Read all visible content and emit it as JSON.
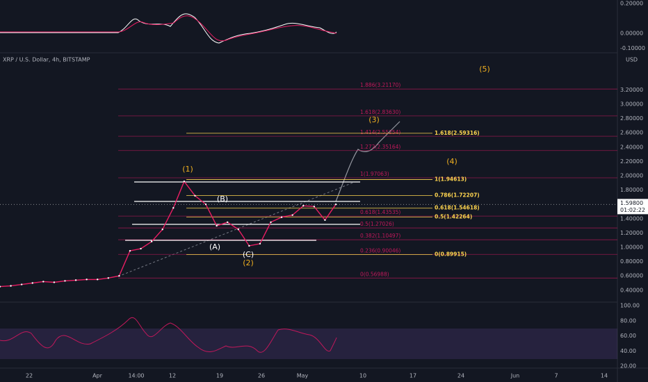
{
  "header": {
    "symbol": "XRP / U.S. Dollar, 4h, BITSTAMP",
    "currency": "USD"
  },
  "macd_axis": [
    {
      "value": 0.2,
      "label": "0.20000"
    },
    {
      "value": 0,
      "label": "0.00000"
    },
    {
      "value": -0.1,
      "label": "-0.10000"
    }
  ],
  "price_axis": [
    {
      "value": 3.2,
      "label": "3.20000"
    },
    {
      "value": 3.0,
      "label": "3.00000"
    },
    {
      "value": 2.8,
      "label": "2.80000"
    },
    {
      "value": 2.6,
      "label": "2.60000"
    },
    {
      "value": 2.4,
      "label": "2.40000"
    },
    {
      "value": 2.2,
      "label": "2.20000"
    },
    {
      "value": 2.0,
      "label": "2.00000"
    },
    {
      "value": 1.8,
      "label": "1.80000"
    },
    {
      "value": 1.4,
      "label": "1.40000"
    },
    {
      "value": 1.2,
      "label": "1.20000"
    },
    {
      "value": 1.0,
      "label": "1.00000"
    },
    {
      "value": 0.8,
      "label": "0.80000"
    },
    {
      "value": 0.6,
      "label": "0.60000"
    },
    {
      "value": 0.4,
      "label": "0.40000"
    }
  ],
  "rsi_axis": [
    {
      "value": 100,
      "label": "100.00"
    },
    {
      "value": 80,
      "label": "80.00"
    },
    {
      "value": 60,
      "label": "60.00"
    },
    {
      "value": 40,
      "label": "40.00"
    },
    {
      "value": 20,
      "label": "20.00"
    }
  ],
  "time_axis": [
    "22",
    "Apr",
    "14:00",
    "12",
    "19",
    "26",
    "May",
    "10",
    "17",
    "24",
    "Jun",
    "7",
    "14"
  ],
  "last_price": {
    "value": 1.598,
    "label": "1.59800",
    "countdown": "01:02:22"
  },
  "fib_extension": [
    {
      "label": "1.886(3.21170)",
      "price": 3.2117
    },
    {
      "label": "1.618(2.83630)",
      "price": 2.8363
    },
    {
      "label": "1.414(2.55254)",
      "price": 2.55254
    },
    {
      "label": "1.272(2.35164)",
      "price": 2.35164
    },
    {
      "label": "1(1.97063)",
      "price": 1.97063
    },
    {
      "label": "0.618(1.43535)",
      "price": 1.43535
    },
    {
      "label": "0.5(1.27026)",
      "price": 1.27026
    },
    {
      "label": "0.382(1.10497)",
      "price": 1.10497
    },
    {
      "label": "0.236(0.90046)",
      "price": 0.90046
    },
    {
      "label": "0(0.56988)",
      "price": 0.56988
    }
  ],
  "fib_retracement": [
    {
      "label": "1.618(2.59316)",
      "price": 2.59316
    },
    {
      "label": "1(1.94613)",
      "price": 1.94613
    },
    {
      "label": "0.786(1.72207)",
      "price": 1.72207
    },
    {
      "label": "0.618(1.54618)",
      "price": 1.54618
    },
    {
      "label": "0.5(1.42264)",
      "price": 1.42264
    },
    {
      "label": "0(0.89915)",
      "price": 0.89915
    }
  ],
  "waves": [
    "(1)",
    "(B)",
    "(A)",
    "(C)",
    "(2)",
    "(3)",
    "(4)",
    "(5)"
  ],
  "price_series": [
    0.45,
    0.46,
    0.48,
    0.5,
    0.52,
    0.51,
    0.53,
    0.54,
    0.55,
    0.55,
    0.57,
    0.6,
    0.95,
    0.98,
    1.08,
    1.25,
    1.55,
    1.92,
    1.72,
    1.6,
    1.3,
    1.35,
    1.25,
    1.02,
    1.05,
    1.35,
    1.42,
    1.45,
    1.58,
    1.57,
    1.38,
    1.6
  ]
}
